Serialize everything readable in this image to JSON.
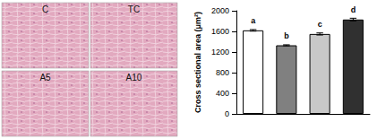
{
  "chart_data": {
    "type": "bar",
    "y_label": "Cross sectional area (μm²)",
    "categories": [
      null,
      null,
      null,
      null
    ],
    "values": [
      1620,
      1330,
      1550,
      1830
    ],
    "errors": [
      15,
      10,
      20,
      25
    ],
    "annotations": [
      "a",
      "b",
      "c",
      "d"
    ],
    "colors": [
      "#ffffff",
      "#808080",
      "#c8c8c8",
      "#303030"
    ],
    "ylim": [
      0,
      2000
    ],
    "yticks": [
      0,
      400,
      800,
      1200,
      1600,
      2000
    ],
    "grid": false
  },
  "panels": {
    "labels": [
      "C",
      "TC",
      "A5",
      "A10"
    ]
  }
}
